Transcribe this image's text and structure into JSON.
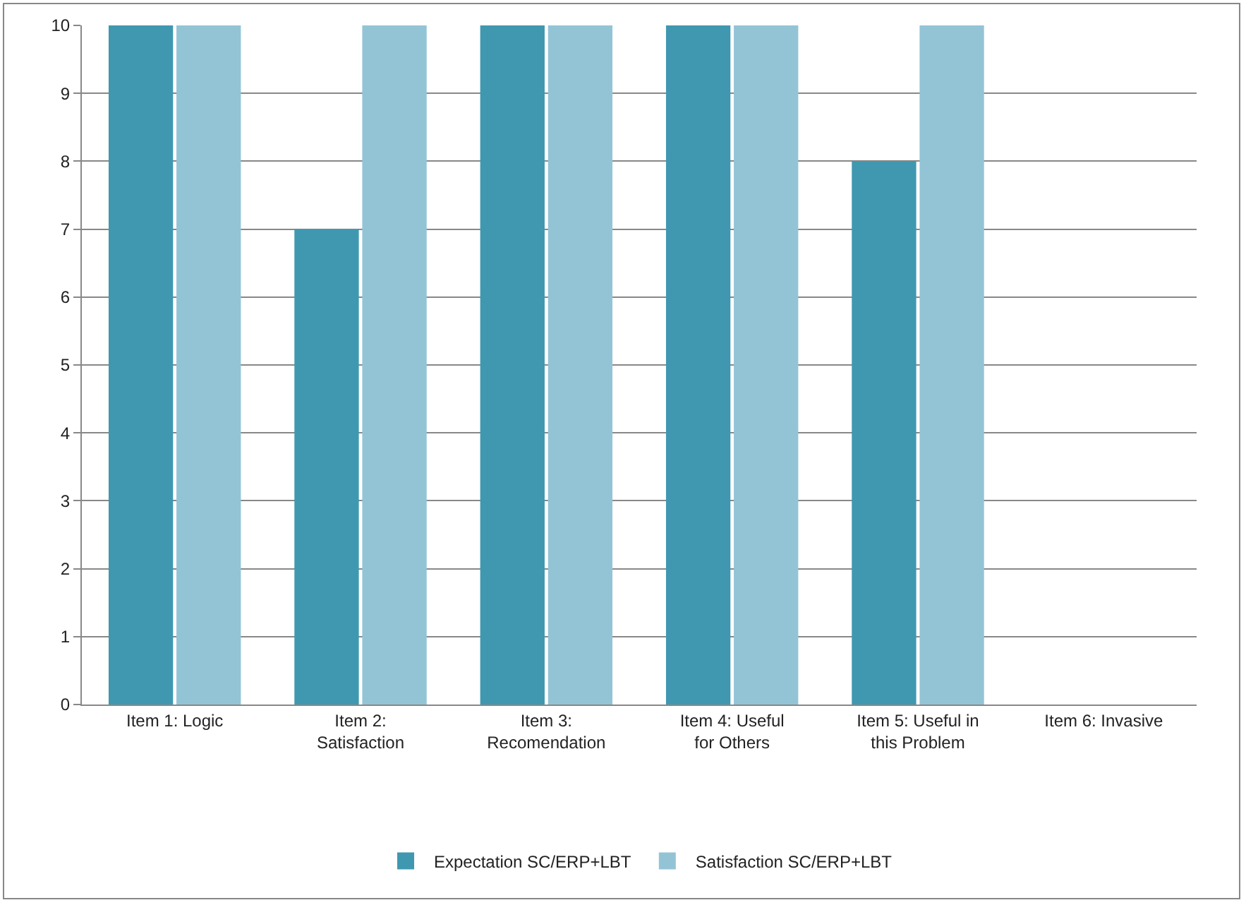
{
  "chart_data": {
    "type": "bar",
    "categories": [
      "Item 1: Logic",
      "Item 2: Satisfaction",
      "Item 3: Recomendation",
      "Item 4: Useful for Others",
      "Item 5: Useful in this Problem",
      "Item 6: Invasive"
    ],
    "series": [
      {
        "name": "Expectation SC/ERP+LBT",
        "color": "#3f98b0",
        "values": [
          10,
          7,
          10,
          10,
          8,
          null
        ]
      },
      {
        "name": "Satisfaction SC/ERP+LBT",
        "color": "#93c4d6",
        "values": [
          10,
          10,
          10,
          10,
          10,
          null
        ]
      }
    ],
    "ylim": [
      0,
      10
    ],
    "yticks": [
      0,
      1,
      2,
      3,
      4,
      5,
      6,
      7,
      8,
      9,
      10
    ],
    "grid": "y",
    "legend": "bottom"
  }
}
